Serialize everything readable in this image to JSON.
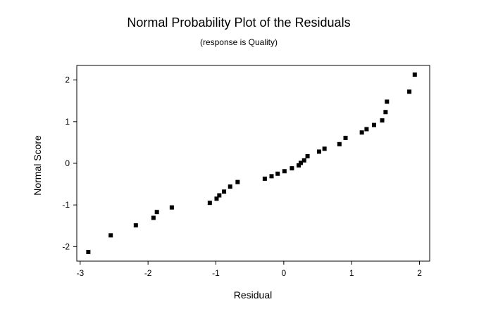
{
  "chart_data": {
    "type": "scatter",
    "title": "Normal Probability Plot of the Residuals",
    "subtitle": "(response is Quality)",
    "xlabel": "Residual",
    "ylabel": "Normal Score",
    "xlim": [
      -3.05,
      2.15
    ],
    "ylim": [
      -2.35,
      2.35
    ],
    "xticks": [
      -3,
      -2,
      -1,
      0,
      1,
      2
    ],
    "yticks": [
      -2,
      -1,
      0,
      1,
      2
    ],
    "grid": false,
    "marker_color": "#000000",
    "points": [
      {
        "x": -2.88,
        "y": -2.13
      },
      {
        "x": -2.55,
        "y": -1.73
      },
      {
        "x": -2.18,
        "y": -1.49
      },
      {
        "x": -1.92,
        "y": -1.31
      },
      {
        "x": -1.87,
        "y": -1.17
      },
      {
        "x": -1.65,
        "y": -1.06
      },
      {
        "x": -1.09,
        "y": -0.95
      },
      {
        "x": -0.99,
        "y": -0.85
      },
      {
        "x": -0.95,
        "y": -0.77
      },
      {
        "x": -0.88,
        "y": -0.68
      },
      {
        "x": -0.79,
        "y": -0.56
      },
      {
        "x": -0.68,
        "y": -0.45
      },
      {
        "x": -0.28,
        "y": -0.37
      },
      {
        "x": -0.18,
        "y": -0.31
      },
      {
        "x": -0.09,
        "y": -0.25
      },
      {
        "x": 0.01,
        "y": -0.19
      },
      {
        "x": 0.12,
        "y": -0.12
      },
      {
        "x": 0.22,
        "y": -0.05
      },
      {
        "x": 0.25,
        "y": 0.01
      },
      {
        "x": 0.3,
        "y": 0.07
      },
      {
        "x": 0.35,
        "y": 0.17
      },
      {
        "x": 0.52,
        "y": 0.28
      },
      {
        "x": 0.6,
        "y": 0.35
      },
      {
        "x": 0.82,
        "y": 0.46
      },
      {
        "x": 0.91,
        "y": 0.61
      },
      {
        "x": 1.15,
        "y": 0.74
      },
      {
        "x": 1.22,
        "y": 0.82
      },
      {
        "x": 1.33,
        "y": 0.92
      },
      {
        "x": 1.45,
        "y": 1.03
      },
      {
        "x": 1.5,
        "y": 1.23
      },
      {
        "x": 1.52,
        "y": 1.48
      },
      {
        "x": 1.85,
        "y": 1.72
      },
      {
        "x": 1.93,
        "y": 2.13
      }
    ]
  }
}
